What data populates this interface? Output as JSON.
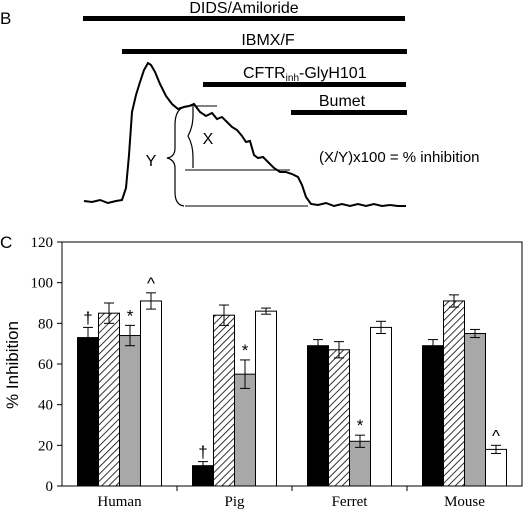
{
  "panel_b": {
    "panel_label": "B",
    "bars": [
      {
        "id": "dids",
        "label": "DIDS/Amiloride"
      },
      {
        "id": "ibmx",
        "label": "IBMX/F"
      },
      {
        "id": "cftr",
        "label_main": "CFTR",
        "label_sub": "inh",
        "label_suffix": "-GlyH101"
      },
      {
        "id": "bumet",
        "label": "Bumet"
      }
    ],
    "bracket_x": "X",
    "bracket_y": "Y",
    "formula": "(X/Y)x100 = % inhibition"
  },
  "chart_data": {
    "type": "bar",
    "panel_label": "C",
    "title": "",
    "xlabel": "",
    "ylabel": "% Inhibition",
    "ylim": [
      0,
      120
    ],
    "yticks": [
      0,
      20,
      40,
      60,
      80,
      100,
      120
    ],
    "categories": [
      "Human",
      "Pig",
      "Ferret",
      "Mouse"
    ],
    "series": [
      {
        "fill": "#000000",
        "values": [
          73,
          10,
          69,
          69
        ],
        "errors": [
          5,
          2,
          3,
          3
        ]
      },
      {
        "fill": "hatch",
        "values": [
          85,
          84,
          67,
          91
        ],
        "errors": [
          5,
          5,
          4,
          3
        ]
      },
      {
        "fill": "#a8a8a8",
        "values": [
          74,
          55,
          22,
          75
        ],
        "errors": [
          5,
          7,
          3,
          2
        ]
      },
      {
        "fill": "#ffffff",
        "values": [
          91,
          86,
          78,
          18
        ],
        "errors": [
          4,
          1.5,
          3,
          2
        ]
      }
    ],
    "annotations": [
      {
        "category": 0,
        "series": 0,
        "text": "†"
      },
      {
        "category": 0,
        "series": 2,
        "text": "*"
      },
      {
        "category": 0,
        "series": 3,
        "text": "^"
      },
      {
        "category": 1,
        "series": 0,
        "text": "†"
      },
      {
        "category": 1,
        "series": 2,
        "text": "*"
      },
      {
        "category": 2,
        "series": 2,
        "text": "*"
      },
      {
        "category": 3,
        "series": 3,
        "text": "^"
      }
    ]
  }
}
